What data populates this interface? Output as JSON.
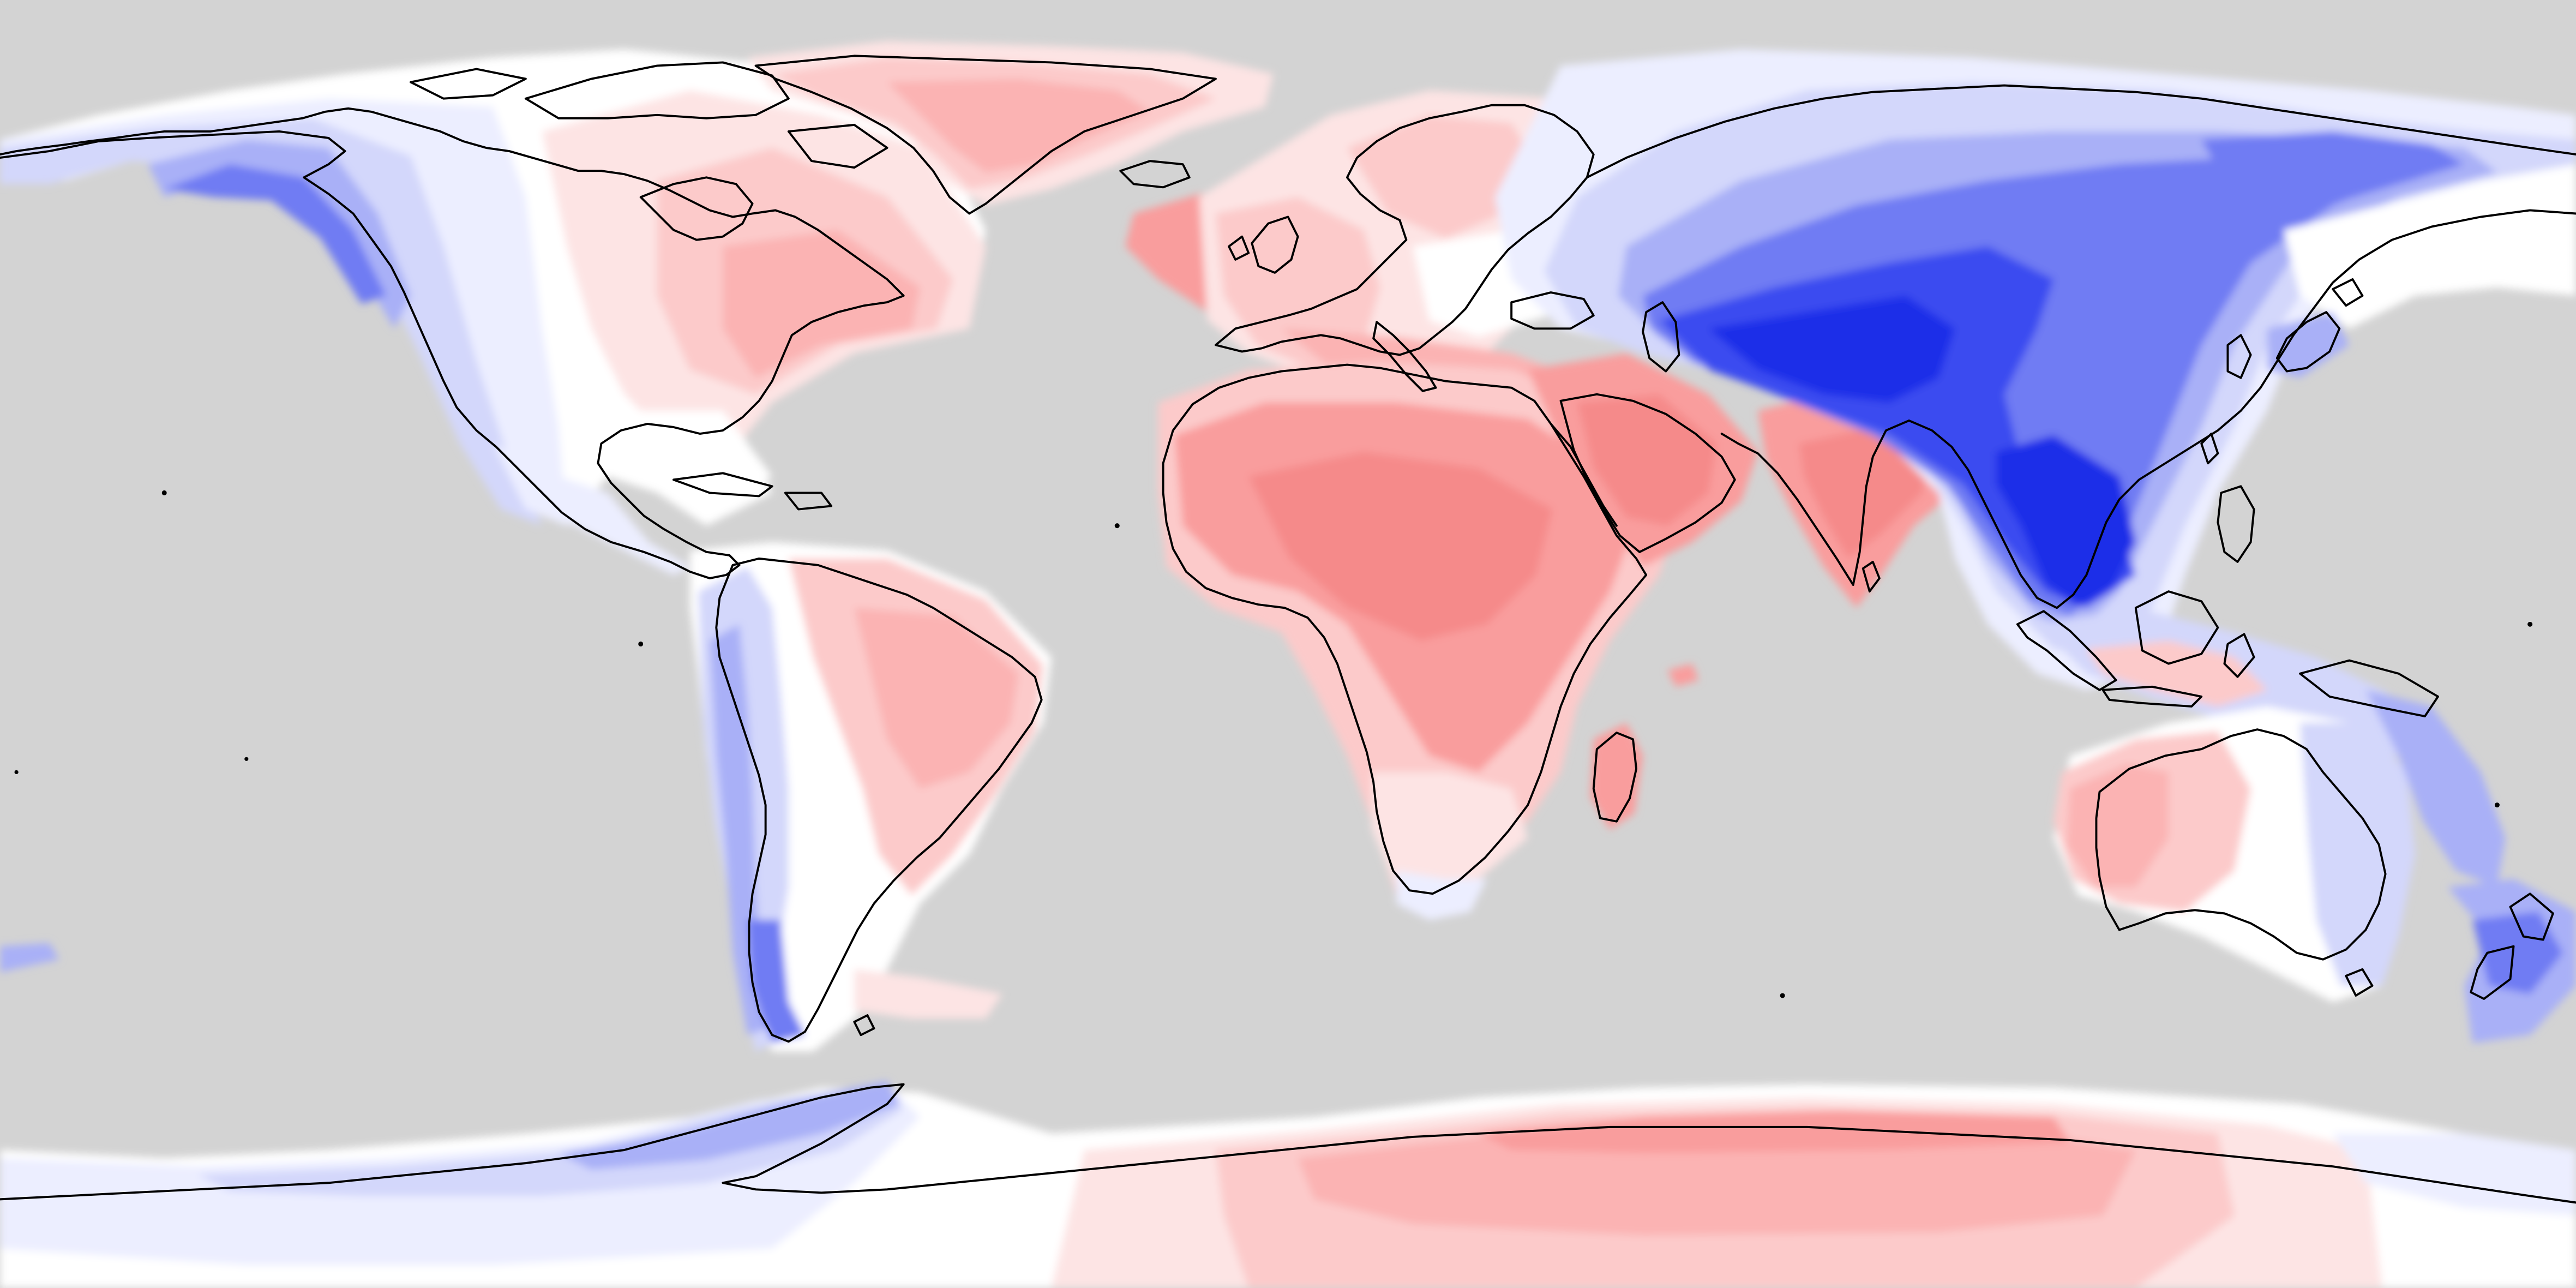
{
  "map": {
    "projection": "equirectangular",
    "ocean_color": "#d3d3d3",
    "coastline_color": "#000000",
    "palette": {
      "blue_strong": "#1f2ee8",
      "blue_dark": "#3b4bf0",
      "blue_mid": "#6f7bf3",
      "blue_soft": "#a9b0f7",
      "blue_light": "#d3d7fb",
      "blue_pale": "#eceeff",
      "white": "#ffffff",
      "red_pale": "#fde4e4",
      "red_light": "#fccaca",
      "red_soft": "#fbb3b3",
      "red_mid": "#f99d9d",
      "red_strong": "#f58a8a"
    }
  }
}
